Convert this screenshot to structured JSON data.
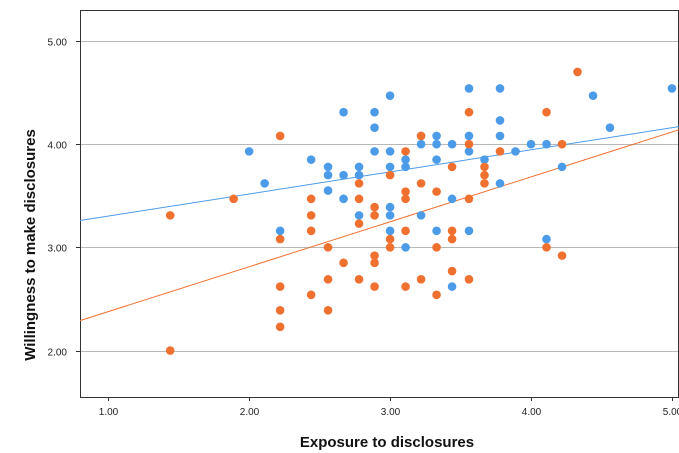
{
  "chart_data": {
    "type": "scatter",
    "xlabel": "Exposure to disclosures",
    "ylabel": "Willingness to make disclosures",
    "xlim": [
      0.8,
      5.05
    ],
    "ylim": [
      1.55,
      5.3
    ],
    "x_ticks": [
      "1.00",
      "2.00",
      "3.00",
      "4.00",
      "5.00"
    ],
    "y_ticks": [
      "2.00",
      "3.00",
      "4.00",
      "5.00"
    ],
    "grid": "horizontal",
    "colors": {
      "blue": "#4c9be8",
      "orange": "#f07030"
    },
    "series": [
      {
        "color": "blue",
        "fit_line": [
          [
            0.8,
            3.26
          ],
          [
            5.05,
            4.17
          ]
        ],
        "points": [
          [
            2.0,
            3.93
          ],
          [
            2.11,
            3.62
          ],
          [
            2.22,
            3.16
          ],
          [
            2.44,
            3.85
          ],
          [
            2.56,
            3.78
          ],
          [
            2.56,
            3.7
          ],
          [
            2.56,
            3.55
          ],
          [
            2.67,
            4.31
          ],
          [
            2.67,
            3.7
          ],
          [
            2.67,
            3.47
          ],
          [
            2.78,
            3.78
          ],
          [
            2.78,
            3.7
          ],
          [
            2.78,
            3.31
          ],
          [
            2.89,
            4.31
          ],
          [
            2.89,
            4.16
          ],
          [
            2.89,
            3.93
          ],
          [
            3.0,
            4.47
          ],
          [
            3.0,
            3.93
          ],
          [
            3.0,
            3.78
          ],
          [
            3.0,
            3.39
          ],
          [
            3.0,
            3.31
          ],
          [
            3.0,
            3.16
          ],
          [
            3.11,
            3.85
          ],
          [
            3.11,
            3.78
          ],
          [
            3.11,
            3.0
          ],
          [
            3.22,
            4.08
          ],
          [
            3.22,
            4.0
          ],
          [
            3.22,
            3.31
          ],
          [
            3.33,
            4.08
          ],
          [
            3.33,
            4.0
          ],
          [
            3.33,
            3.85
          ],
          [
            3.33,
            3.16
          ],
          [
            3.44,
            4.0
          ],
          [
            3.44,
            3.47
          ],
          [
            3.44,
            2.62
          ],
          [
            3.56,
            4.54
          ],
          [
            3.56,
            4.08
          ],
          [
            3.56,
            3.93
          ],
          [
            3.56,
            3.16
          ],
          [
            3.67,
            3.85
          ],
          [
            3.78,
            4.54
          ],
          [
            3.78,
            4.23
          ],
          [
            3.78,
            4.08
          ],
          [
            3.78,
            3.62
          ],
          [
            3.89,
            3.93
          ],
          [
            4.0,
            4.0
          ],
          [
            4.11,
            4.0
          ],
          [
            4.11,
            3.08
          ],
          [
            4.22,
            3.78
          ],
          [
            4.44,
            4.47
          ],
          [
            4.56,
            4.16
          ],
          [
            5.0,
            4.54
          ]
        ]
      },
      {
        "color": "orange",
        "fit_line": [
          [
            0.8,
            2.29
          ],
          [
            5.05,
            4.14
          ]
        ],
        "points": [
          [
            1.44,
            3.31
          ],
          [
            1.44,
            2.0
          ],
          [
            1.89,
            3.47
          ],
          [
            2.22,
            4.08
          ],
          [
            2.22,
            3.08
          ],
          [
            2.22,
            2.62
          ],
          [
            2.22,
            2.39
          ],
          [
            2.22,
            2.23
          ],
          [
            2.44,
            3.47
          ],
          [
            2.44,
            3.31
          ],
          [
            2.44,
            3.16
          ],
          [
            2.44,
            2.54
          ],
          [
            2.56,
            3.0
          ],
          [
            2.56,
            2.69
          ],
          [
            2.56,
            2.39
          ],
          [
            2.67,
            2.85
          ],
          [
            2.78,
            3.62
          ],
          [
            2.78,
            3.47
          ],
          [
            2.78,
            3.23
          ],
          [
            2.78,
            2.69
          ],
          [
            2.89,
            3.39
          ],
          [
            2.89,
            3.31
          ],
          [
            2.89,
            2.92
          ],
          [
            2.89,
            2.85
          ],
          [
            2.89,
            2.62
          ],
          [
            3.0,
            3.7
          ],
          [
            3.0,
            3.08
          ],
          [
            3.0,
            3.0
          ],
          [
            3.11,
            3.93
          ],
          [
            3.11,
            3.54
          ],
          [
            3.11,
            3.47
          ],
          [
            3.11,
            3.16
          ],
          [
            3.11,
            2.62
          ],
          [
            3.22,
            4.08
          ],
          [
            3.22,
            3.62
          ],
          [
            3.22,
            2.69
          ],
          [
            3.33,
            3.54
          ],
          [
            3.33,
            3.0
          ],
          [
            3.33,
            2.54
          ],
          [
            3.44,
            3.78
          ],
          [
            3.44,
            3.16
          ],
          [
            3.44,
            3.08
          ],
          [
            3.44,
            2.77
          ],
          [
            3.56,
            4.31
          ],
          [
            3.56,
            4.0
          ],
          [
            3.56,
            3.47
          ],
          [
            3.56,
            2.69
          ],
          [
            3.67,
            3.78
          ],
          [
            3.67,
            3.7
          ],
          [
            3.67,
            3.62
          ],
          [
            3.78,
            3.93
          ],
          [
            4.11,
            4.31
          ],
          [
            4.11,
            3.0
          ],
          [
            4.22,
            4.0
          ],
          [
            4.22,
            2.92
          ],
          [
            4.33,
            4.7
          ]
        ]
      }
    ]
  }
}
